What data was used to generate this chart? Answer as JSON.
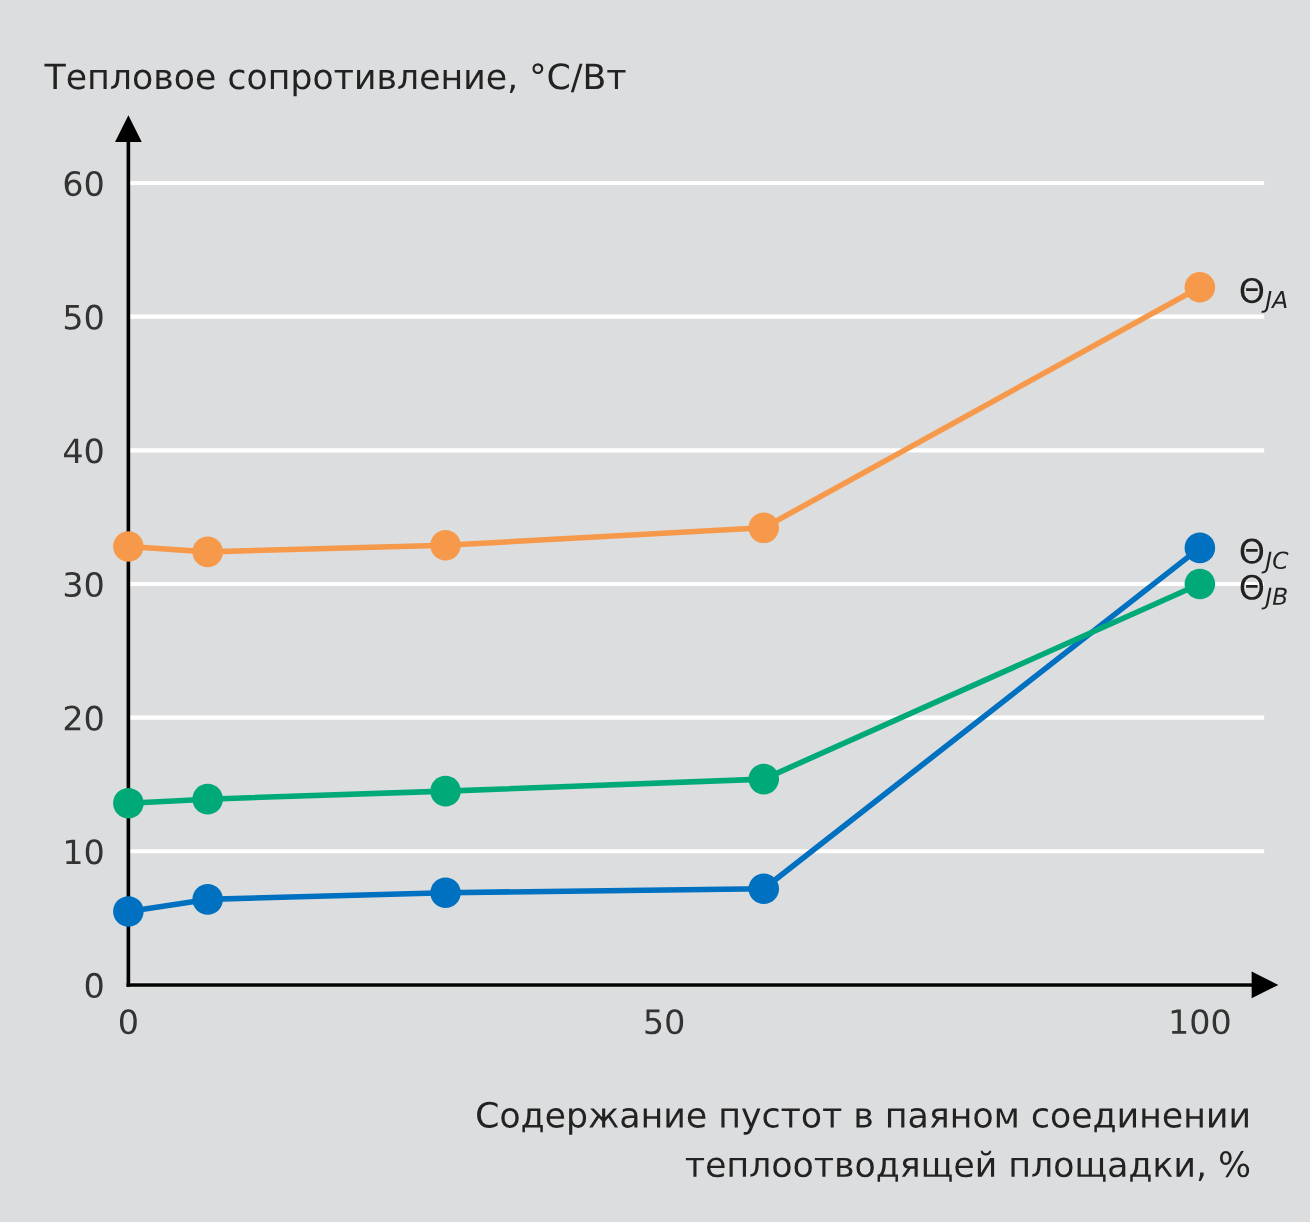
{
  "chart_data": {
    "type": "line",
    "ylabel": "Тепловое сопротивление, °C/Вт",
    "xlabel": "Содержание пустот в паяном соединении\nтеплоотводящей площадки, %",
    "x": [
      0,
      7.4,
      29.6,
      59.3,
      100
    ],
    "series": [
      {
        "name": "Θ$_{JA}$",
        "color": "#f7994a",
        "values": [
          32.8,
          32.4,
          32.9,
          34.2,
          52.2
        ]
      },
      {
        "name": "Θ$_{JC}$",
        "color": "#0070c0",
        "values": [
          5.5,
          6.4,
          6.9,
          7.2,
          32.7
        ]
      },
      {
        "name": "Θ$_{JB}$",
        "color": "#00aa78",
        "values": [
          13.6,
          13.9,
          14.5,
          15.4,
          30.0
        ]
      }
    ],
    "xlim": [
      0,
      106
    ],
    "ylim": [
      0,
      64
    ],
    "xticks": [
      0,
      50,
      100
    ],
    "yticks": [
      0,
      10,
      20,
      30,
      40,
      50,
      60
    ],
    "grid": "y",
    "legend": false,
    "marker": "circle",
    "line_style": "solid"
  }
}
